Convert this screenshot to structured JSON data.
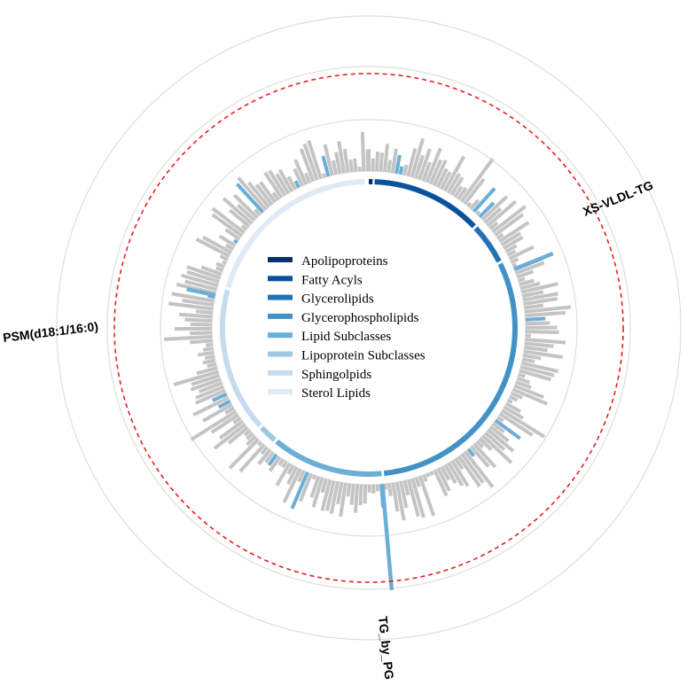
{
  "chart_data": {
    "type": "circular-bar",
    "title": "",
    "legend": {
      "placement": "center",
      "entries": [
        {
          "name": "Apolipoproteins",
          "color": "#08306b"
        },
        {
          "name": "Fatty Acyls",
          "color": "#08519c"
        },
        {
          "name": "Glycerolipids",
          "color": "#2171b5"
        },
        {
          "name": "Glycerophospholipids",
          "color": "#4292c6"
        },
        {
          "name": "Lipid Subclasses",
          "color": "#6baed6"
        },
        {
          "name": "Lipoprotein Subclasses",
          "color": "#9ecae1"
        },
        {
          "name": "Sphingolpids",
          "color": "#c6dbef"
        },
        {
          "name": "Sterol Lipids",
          "color": "#deebf7"
        }
      ]
    },
    "class_ring": [
      {
        "name": "Apolipoproteins",
        "start_deg": 0.0,
        "end_deg": 1.5
      },
      {
        "name": "Fatty Acyls",
        "start_deg": 2.3,
        "end_deg": 46.0
      },
      {
        "name": "Glycerolipids",
        "start_deg": 47.0,
        "end_deg": 63.0
      },
      {
        "name": "Glycerophospholipids",
        "start_deg": 64.0,
        "end_deg": 174.0
      },
      {
        "name": "Lipid Subclasses",
        "start_deg": 175.0,
        "end_deg": 219.0
      },
      {
        "name": "Lipoprotein Subclasses",
        "start_deg": 220.0,
        "end_deg": 227.0
      },
      {
        "name": "Sphingolpids",
        "start_deg": 228.0,
        "end_deg": 285.0
      },
      {
        "name": "Sterol Lipids",
        "start_deg": 286.0,
        "end_deg": 358.5
      }
    ],
    "threshold_ring": {
      "style": "dashed",
      "color": "#e8201e"
    },
    "background_rings": 4,
    "bars_note": "gray bars = non-significant features; blue bars = significant features",
    "highlighted_features": [
      {
        "label": "XS-VLDL-TG",
        "angle_deg": 68
      },
      {
        "label": "PSM(d18:1/16:0)",
        "angle_deg": 282
      },
      {
        "label": "TG_by_PG",
        "angle_deg": 175
      }
    ],
    "colors": {
      "bar_gray": "#c4c4c4",
      "bar_blue": "#6baed6",
      "grid": "#dedede",
      "threshold": "#e8201e"
    }
  }
}
